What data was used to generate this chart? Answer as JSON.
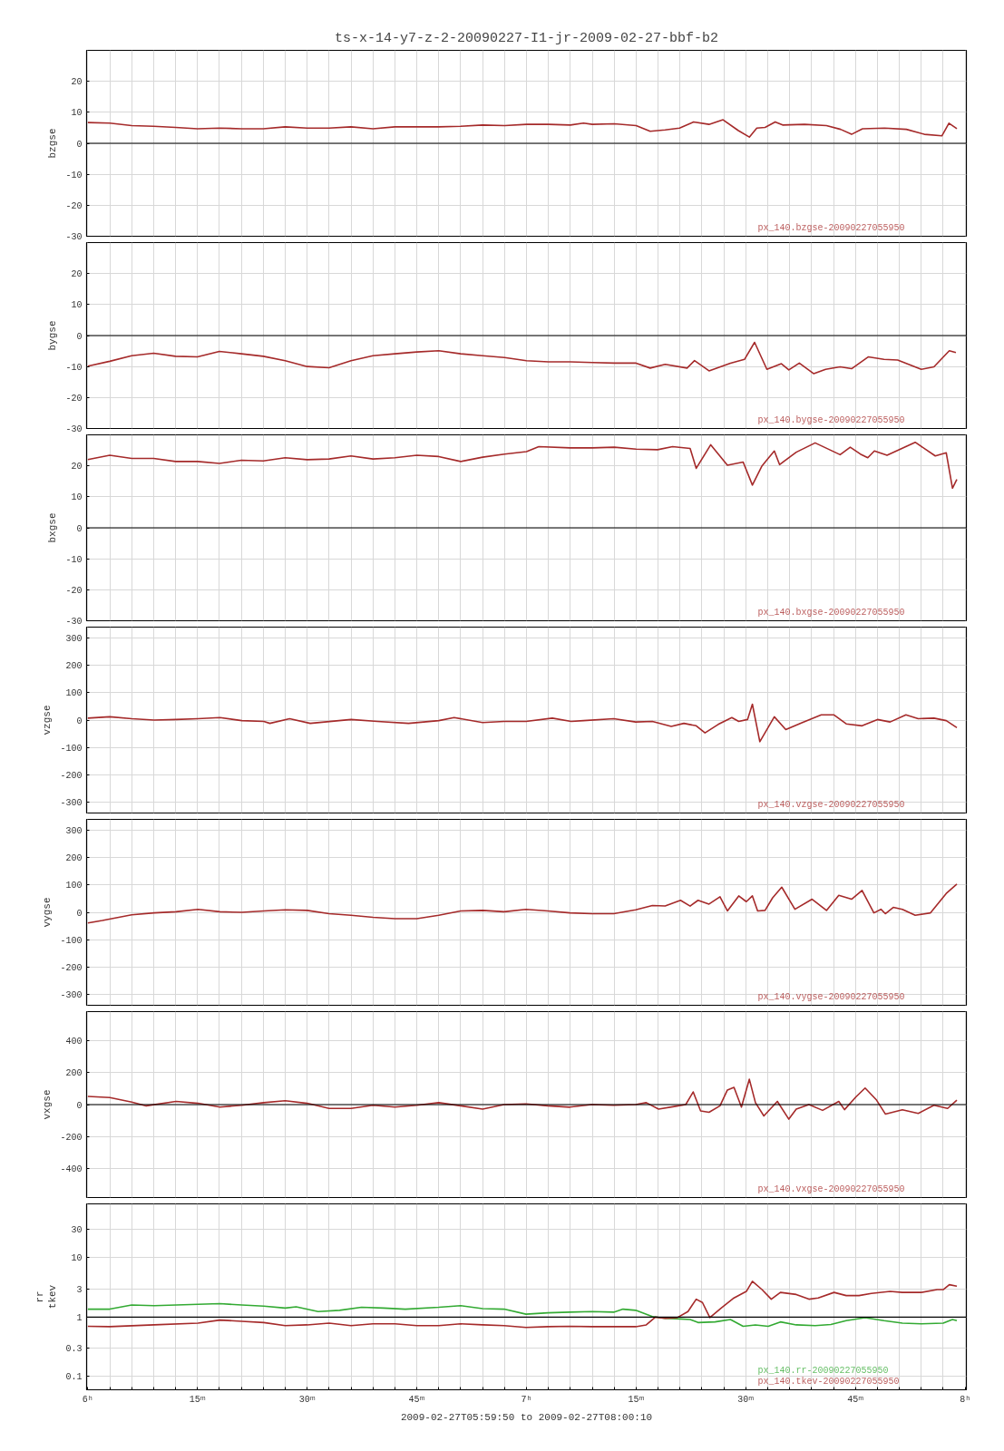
{
  "chart_data": [
    {
      "type": "line",
      "title": "ts-x-14-y7-z-2-20090227-I1-jr-2009-02-27-bbf-b2",
      "ylabel": "bzgse",
      "xlim": [
        "2009-02-27T05:59:50",
        "2009-02-27T08:00:10"
      ],
      "ylim": [
        -30,
        30
      ],
      "yticks": [
        -30,
        -20,
        -10,
        0,
        10,
        20
      ],
      "tick_labels": "y",
      "grid": true,
      "ref_lines": [
        {
          "axis": "y",
          "value": 0
        }
      ],
      "annotations": [
        "px_140.bzgse-20090227055950"
      ],
      "xticks": [
        "2009-02-27T06:00",
        "2009-02-27T06:03",
        "2009-02-27T06:06",
        "2009-02-27T06:09",
        "2009-02-27T06:12",
        "2009-02-27T06:15",
        "2009-02-27T06:18",
        "2009-02-27T06:21",
        "2009-02-27T06:24",
        "2009-02-27T06:27",
        "2009-02-27T06:30",
        "2009-02-27T06:33",
        "2009-02-27T06:36",
        "2009-02-27T06:39",
        "2009-02-27T06:42",
        "2009-02-27T06:45",
        "2009-02-27T06:48",
        "2009-02-27T06:51",
        "2009-02-27T06:54",
        "2009-02-27T06:57",
        "2009-02-27T07:00",
        "2009-02-27T07:03",
        "2009-02-27T07:06",
        "2009-02-27T07:09",
        "2009-02-27T07:12",
        "2009-02-27T07:15",
        "2009-02-27T07:18",
        "2009-02-27T07:21",
        "2009-02-27T07:24",
        "2009-02-27T07:27",
        "2009-02-27T07:30",
        "2009-02-27T07:33",
        "2009-02-27T07:36",
        "2009-02-27T07:39",
        "2009-02-27T07:42",
        "2009-02-27T07:45",
        "2009-02-27T07:48",
        "2009-02-27T07:51",
        "2009-02-27T07:54",
        "2009-02-27T07:57",
        "2009-02-27T08:00"
      ],
      "series": [
        {
          "color": "#a52a2a",
          "x": [
            "2009-02-27T06:00",
            "2009-02-27T06:03",
            "2009-02-27T06:06",
            "2009-02-27T06:09",
            "2009-02-27T06:12",
            "2009-02-27T06:15",
            "2009-02-27T06:18",
            "2009-02-27T06:21",
            "2009-02-27T06:24",
            "2009-02-27T06:27",
            "2009-02-27T06:30",
            "2009-02-27T06:33",
            "2009-02-27T06:36",
            "2009-02-27T06:39",
            "2009-02-27T06:42",
            "2009-02-27T06:45",
            "2009-02-27T06:48",
            "2009-02-27T06:51",
            "2009-02-27T06:54",
            "2009-02-27T06:57",
            "2009-02-27T07:00",
            "2009-02-27T07:03",
            "2009-02-27T07:06",
            "2009-02-27T07:07:48",
            "2009-02-27T07:09",
            "2009-02-27T07:12",
            "2009-02-27T07:15",
            "2009-02-27T07:16:55",
            "2009-02-27T07:18:58",
            "2009-02-27T07:20:56",
            "2009-02-27T07:22:52",
            "2009-02-27T07:24:58",
            "2009-02-27T07:26:53",
            "2009-02-27T07:28:59",
            "2009-02-27T07:30:29",
            "2009-02-27T07:31:30",
            "2009-02-27T07:32:38",
            "2009-02-27T07:34:01",
            "2009-02-27T07:35:02",
            "2009-02-27T07:38:02",
            "2009-02-27T07:41:02",
            "2009-02-27T07:42:58",
            "2009-02-27T07:44:28",
            "2009-02-27T07:45:58",
            "2009-02-27T07:48:58",
            "2009-02-27T07:51:58",
            "2009-02-27T07:54:25",
            "2009-02-27T07:56:49",
            "2009-02-27T07:57:47",
            "2009-02-27T07:58:52"
          ],
          "values": [
            6.7,
            6.5,
            5.7,
            5.5,
            5.1,
            4.7,
            4.9,
            4.7,
            4.7,
            5.3,
            4.9,
            4.9,
            5.3,
            4.7,
            5.3,
            5.3,
            5.3,
            5.5,
            5.9,
            5.7,
            6.1,
            6.1,
            5.9,
            6.5,
            6.1,
            6.3,
            5.7,
            3.9,
            4.3,
            4.9,
            6.9,
            6.1,
            7.6,
            4.1,
            2.0,
            4.9,
            5.1,
            6.9,
            5.9,
            6.1,
            5.7,
            4.5,
            2.9,
            4.7,
            4.9,
            4.5,
            2.9,
            2.4,
            6.5,
            4.7
          ]
        }
      ]
    },
    {
      "type": "line",
      "ylabel": "bygse",
      "xlim": [
        "2009-02-27T05:59:50",
        "2009-02-27T08:00:10"
      ],
      "ylim": [
        -30,
        30
      ],
      "yticks": [
        -30,
        -20,
        -10,
        0,
        10,
        20
      ],
      "tick_labels": "y",
      "grid": true,
      "ref_lines": [
        {
          "axis": "y",
          "value": 0
        }
      ],
      "annotations": [
        "px_140.bygse-20090227055950"
      ],
      "xticks": [
        "2009-02-27T06:00",
        "2009-02-27T06:03",
        "2009-02-27T06:06",
        "2009-02-27T06:09",
        "2009-02-27T06:12",
        "2009-02-27T06:15",
        "2009-02-27T06:18",
        "2009-02-27T06:21",
        "2009-02-27T06:24",
        "2009-02-27T06:27",
        "2009-02-27T06:30",
        "2009-02-27T06:33",
        "2009-02-27T06:36",
        "2009-02-27T06:39",
        "2009-02-27T06:42",
        "2009-02-27T06:45",
        "2009-02-27T06:48",
        "2009-02-27T06:51",
        "2009-02-27T06:54",
        "2009-02-27T06:57",
        "2009-02-27T07:00",
        "2009-02-27T07:03",
        "2009-02-27T07:06",
        "2009-02-27T07:09",
        "2009-02-27T07:12",
        "2009-02-27T07:15",
        "2009-02-27T07:18",
        "2009-02-27T07:21",
        "2009-02-27T07:24",
        "2009-02-27T07:27",
        "2009-02-27T07:30",
        "2009-02-27T07:33",
        "2009-02-27T07:36",
        "2009-02-27T07:39",
        "2009-02-27T07:42",
        "2009-02-27T07:45",
        "2009-02-27T07:48",
        "2009-02-27T07:51",
        "2009-02-27T07:54",
        "2009-02-27T07:57",
        "2009-02-27T08:00"
      ],
      "series": [
        {
          "color": "#a52a2a",
          "x": [
            "2009-02-27T06:00",
            "2009-02-27T06:03",
            "2009-02-27T06:06",
            "2009-02-27T06:09",
            "2009-02-27T06:12",
            "2009-02-27T06:15",
            "2009-02-27T06:18",
            "2009-02-27T06:21",
            "2009-02-27T06:24",
            "2009-02-27T06:27",
            "2009-02-27T06:30",
            "2009-02-27T06:33",
            "2009-02-27T06:36",
            "2009-02-27T06:39",
            "2009-02-27T06:42",
            "2009-02-27T06:45",
            "2009-02-27T06:48",
            "2009-02-27T06:51",
            "2009-02-27T06:54",
            "2009-02-27T06:57",
            "2009-02-27T07:00",
            "2009-02-27T07:03",
            "2009-02-27T07:06",
            "2009-02-27T07:09",
            "2009-02-27T07:12",
            "2009-02-27T07:15",
            "2009-02-27T07:16:55",
            "2009-02-27T07:18:58",
            "2009-02-27T07:21:58",
            "2009-02-27T07:22:59",
            "2009-02-27T07:24:58",
            "2009-02-27T07:27:54",
            "2009-02-27T07:29:49",
            "2009-02-27T07:31:12",
            "2009-02-27T07:32:53",
            "2009-02-27T07:34:52",
            "2009-02-27T07:35:53",
            "2009-02-27T07:37:19",
            "2009-02-27T07:39:18",
            "2009-02-27T07:40:55",
            "2009-02-27T07:42:54",
            "2009-02-27T07:44:28",
            "2009-02-27T07:46:44",
            "2009-02-27T07:48:54",
            "2009-02-27T07:50:46",
            "2009-02-27T07:54",
            "2009-02-27T07:55:44",
            "2009-02-27T07:57:50",
            "2009-02-27T07:58:44"
          ],
          "values": [
            -9.9,
            -8.3,
            -6.5,
            -5.7,
            -6.7,
            -6.9,
            -5.1,
            -5.9,
            -6.7,
            -8.1,
            -10,
            -10.4,
            -8.1,
            -6.5,
            -5.9,
            -5.3,
            -4.9,
            -5.9,
            -6.5,
            -7.1,
            -8.1,
            -8.5,
            -8.5,
            -8.7,
            -8.9,
            -8.9,
            -10.5,
            -9.3,
            -10.5,
            -8.1,
            -11.4,
            -8.9,
            -7.7,
            -2.2,
            -10.9,
            -9.1,
            -11.1,
            -8.9,
            -12.3,
            -10.9,
            -10.1,
            -10.7,
            -6.9,
            -7.7,
            -7.9,
            -10.9,
            -10.1,
            -4.9,
            -5.5
          ]
        }
      ]
    },
    {
      "type": "line",
      "ylabel": "bxgse",
      "xlim": [
        "2009-02-27T05:59:50",
        "2009-02-27T08:00:10"
      ],
      "ylim": [
        -30,
        30
      ],
      "yticks": [
        -30,
        -20,
        -10,
        0,
        10,
        20
      ],
      "tick_labels": "y",
      "grid": true,
      "ref_lines": [
        {
          "axis": "y",
          "value": 0
        }
      ],
      "annotations": [
        "px_140.bxgse-20090227055950"
      ],
      "xticks": [
        "2009-02-27T06:00",
        "2009-02-27T06:03",
        "2009-02-27T06:06",
        "2009-02-27T06:09",
        "2009-02-27T06:12",
        "2009-02-27T06:15",
        "2009-02-27T06:18",
        "2009-02-27T06:21",
        "2009-02-27T06:24",
        "2009-02-27T06:27",
        "2009-02-27T06:30",
        "2009-02-27T06:33",
        "2009-02-27T06:36",
        "2009-02-27T06:39",
        "2009-02-27T06:42",
        "2009-02-27T06:45",
        "2009-02-27T06:48",
        "2009-02-27T06:51",
        "2009-02-27T06:54",
        "2009-02-27T06:57",
        "2009-02-27T07:00",
        "2009-02-27T07:03",
        "2009-02-27T07:06",
        "2009-02-27T07:09",
        "2009-02-27T07:12",
        "2009-02-27T07:15",
        "2009-02-27T07:18",
        "2009-02-27T07:21",
        "2009-02-27T07:24",
        "2009-02-27T07:27",
        "2009-02-27T07:30",
        "2009-02-27T07:33",
        "2009-02-27T07:36",
        "2009-02-27T07:39",
        "2009-02-27T07:42",
        "2009-02-27T07:45",
        "2009-02-27T07:48",
        "2009-02-27T07:51",
        "2009-02-27T07:54",
        "2009-02-27T07:57",
        "2009-02-27T08:00"
      ],
      "series": [
        {
          "color": "#a52a2a",
          "x": [
            "2009-02-27T06:00",
            "2009-02-27T06:03",
            "2009-02-27T06:06",
            "2009-02-27T06:09",
            "2009-02-27T06:12",
            "2009-02-27T06:15",
            "2009-02-27T06:18",
            "2009-02-27T06:21",
            "2009-02-27T06:24",
            "2009-02-27T06:27",
            "2009-02-27T06:30",
            "2009-02-27T06:33",
            "2009-02-27T06:36",
            "2009-02-27T06:39",
            "2009-02-27T06:42",
            "2009-02-27T06:45",
            "2009-02-27T06:48",
            "2009-02-27T06:51",
            "2009-02-27T06:54",
            "2009-02-27T06:57",
            "2009-02-27T07:00",
            "2009-02-27T07:01:41",
            "2009-02-27T07:06",
            "2009-02-27T07:09",
            "2009-02-27T07:12",
            "2009-02-27T07:15",
            "2009-02-27T07:17:56",
            "2009-02-27T07:19:59",
            "2009-02-27T07:22:23",
            "2009-02-27T07:23:13",
            "2009-02-27T07:25:12",
            "2009-02-27T07:27:29",
            "2009-02-27T07:29:38",
            "2009-02-27T07:30:54",
            "2009-02-27T07:32:13",
            "2009-02-27T07:33:54",
            "2009-02-27T07:34:37",
            "2009-02-27T07:36:54",
            "2009-02-27T07:39:29",
            "2009-02-27T07:42:54",
            "2009-02-27T07:44:17",
            "2009-02-27T07:45:40",
            "2009-02-27T07:46:41",
            "2009-02-27T07:47:35",
            "2009-02-27T07:49:19",
            "2009-02-27T07:53:10",
            "2009-02-27T07:55:55",
            "2009-02-27T07:57:25",
            "2009-02-27T07:58:16",
            "2009-02-27T07:58:52"
          ],
          "values": [
            22,
            23.4,
            22.4,
            22.4,
            21.4,
            21.4,
            20.8,
            21.8,
            21.6,
            22.6,
            22,
            22.2,
            23.2,
            22.2,
            22.6,
            23.4,
            23,
            21.4,
            22.8,
            23.8,
            24.6,
            26.2,
            25.8,
            25.8,
            26,
            25.4,
            25.2,
            26.2,
            25.6,
            19.2,
            26.8,
            20.2,
            21.2,
            13.8,
            20,
            24.8,
            20.4,
            24.4,
            27.4,
            23.6,
            26,
            23.8,
            22.6,
            24.8,
            23.4,
            27.6,
            23.2,
            24.2,
            12.8,
            15.6
          ]
        }
      ]
    },
    {
      "type": "line",
      "ylabel": "vzgse",
      "xlim": [
        "2009-02-27T05:59:50",
        "2009-02-27T08:00:10"
      ],
      "ylim": [
        -340,
        340
      ],
      "yticks": [
        -300,
        -200,
        -100,
        0,
        100,
        200,
        300
      ],
      "tick_labels": "y",
      "grid": true,
      "annotations": [
        "px_140.vzgse-20090227055950"
      ],
      "xticks": [
        "2009-02-27T06:00",
        "2009-02-27T06:03",
        "2009-02-27T06:06",
        "2009-02-27T06:09",
        "2009-02-27T06:12",
        "2009-02-27T06:15",
        "2009-02-27T06:18",
        "2009-02-27T06:21",
        "2009-02-27T06:24",
        "2009-02-27T06:27",
        "2009-02-27T06:30",
        "2009-02-27T06:33",
        "2009-02-27T06:36",
        "2009-02-27T06:39",
        "2009-02-27T06:42",
        "2009-02-27T06:45",
        "2009-02-27T06:48",
        "2009-02-27T06:51",
        "2009-02-27T06:54",
        "2009-02-27T06:57",
        "2009-02-27T07:00",
        "2009-02-27T07:03",
        "2009-02-27T07:06",
        "2009-02-27T07:09",
        "2009-02-27T07:12",
        "2009-02-27T07:15",
        "2009-02-27T07:18",
        "2009-02-27T07:21",
        "2009-02-27T07:24",
        "2009-02-27T07:27",
        "2009-02-27T07:30",
        "2009-02-27T07:33",
        "2009-02-27T07:36",
        "2009-02-27T07:39",
        "2009-02-27T07:42",
        "2009-02-27T07:45",
        "2009-02-27T07:48",
        "2009-02-27T07:51",
        "2009-02-27T07:54",
        "2009-02-27T07:57",
        "2009-02-27T08:00"
      ],
      "series": [
        {
          "color": "#a52a2a",
          "x": [
            "2009-02-27T06:00",
            "2009-02-27T06:03",
            "2009-02-27T06:06",
            "2009-02-27T06:09:04",
            "2009-02-27T06:12:04",
            "2009-02-27T06:15:04",
            "2009-02-27T06:18:04",
            "2009-02-27T06:21:04",
            "2009-02-27T06:24:04",
            "2009-02-27T06:24:54",
            "2009-02-27T06:27:36",
            "2009-02-27T06:30:25",
            "2009-02-27T06:36",
            "2009-02-27T06:39:36",
            "2009-02-27T06:43:52",
            "2009-02-27T06:48",
            "2009-02-27T06:50:06",
            "2009-02-27T06:54",
            "2009-02-27T06:56:56",
            "2009-02-27T06:59:56",
            "2009-02-27T07:03:32",
            "2009-02-27T07:06:07",
            "2009-02-27T07:07:48",
            "2009-02-27T07:11:56",
            "2009-02-27T07:14:56",
            "2009-02-27T07:17:13",
            "2009-02-27T07:19:48",
            "2009-02-27T07:21:32",
            "2009-02-27T07:23:13",
            "2009-02-27T07:24:25",
            "2009-02-27T07:26:13",
            "2009-02-27T07:28:05",
            "2009-02-27T07:29:02",
            "2009-02-27T07:30:14",
            "2009-02-27T07:30:54",
            "2009-02-27T07:31:55",
            "2009-02-27T07:33:54",
            "2009-02-27T07:35:28",
            "2009-02-27T07:37:44",
            "2009-02-27T07:40:19",
            "2009-02-27T07:42:04",
            "2009-02-27T07:43:44",
            "2009-02-27T07:45:54",
            "2009-02-27T07:48",
            "2009-02-27T07:49:44",
            "2009-02-27T07:51:54",
            "2009-02-27T07:53:35",
            "2009-02-27T07:55:44",
            "2009-02-27T07:57:25",
            "2009-02-27T07:58:52"
          ],
          "values": [
            7,
            12,
            5,
            0,
            2,
            5,
            9,
            -2,
            -5,
            -12,
            5,
            -12,
            2,
            -5,
            -12,
            -2,
            9,
            -9,
            -5,
            -5,
            7,
            -5,
            -2,
            5,
            -7,
            -5,
            -23,
            -12,
            -21,
            -47,
            -16,
            9,
            -5,
            2,
            58,
            -79,
            12,
            -35,
            -9,
            19,
            19,
            -14,
            -21,
            2,
            -7,
            19,
            5,
            7,
            -2,
            -28
          ]
        }
      ]
    },
    {
      "type": "line",
      "ylabel": "vygse",
      "xlim": [
        "2009-02-27T05:59:50",
        "2009-02-27T08:00:10"
      ],
      "ylim": [
        -340,
        340
      ],
      "yticks": [
        -300,
        -200,
        -100,
        0,
        100,
        200,
        300
      ],
      "tick_labels": "y",
      "grid": true,
      "annotations": [
        "px_140.vygse-20090227055950"
      ],
      "xticks": [
        "2009-02-27T06:00",
        "2009-02-27T06:03",
        "2009-02-27T06:06",
        "2009-02-27T06:09",
        "2009-02-27T06:12",
        "2009-02-27T06:15",
        "2009-02-27T06:18",
        "2009-02-27T06:21",
        "2009-02-27T06:24",
        "2009-02-27T06:27",
        "2009-02-27T06:30",
        "2009-02-27T06:33",
        "2009-02-27T06:36",
        "2009-02-27T06:39",
        "2009-02-27T06:42",
        "2009-02-27T06:45",
        "2009-02-27T06:48",
        "2009-02-27T06:51",
        "2009-02-27T06:54",
        "2009-02-27T06:57",
        "2009-02-27T07:00",
        "2009-02-27T07:03",
        "2009-02-27T07:06",
        "2009-02-27T07:09",
        "2009-02-27T07:12",
        "2009-02-27T07:15",
        "2009-02-27T07:18",
        "2009-02-27T07:21",
        "2009-02-27T07:24",
        "2009-02-27T07:27",
        "2009-02-27T07:30",
        "2009-02-27T07:33",
        "2009-02-27T07:36",
        "2009-02-27T07:39",
        "2009-02-27T07:42",
        "2009-02-27T07:45",
        "2009-02-27T07:48",
        "2009-02-27T07:51",
        "2009-02-27T07:54",
        "2009-02-27T07:57",
        "2009-02-27T08:00"
      ],
      "series": [
        {
          "color": "#a52a2a",
          "x": [
            "2009-02-27T06:00",
            "2009-02-27T06:01:59",
            "2009-02-27T06:06",
            "2009-02-27T06:09:04",
            "2009-02-27T06:12:04",
            "2009-02-27T06:15:04",
            "2009-02-27T06:18:04",
            "2009-02-27T06:21:04",
            "2009-02-27T06:24:04",
            "2009-02-27T06:27",
            "2009-02-27T06:30",
            "2009-02-27T06:33",
            "2009-02-27T06:36",
            "2009-02-27T06:39",
            "2009-02-27T06:42",
            "2009-02-27T06:45",
            "2009-02-27T06:48",
            "2009-02-27T06:51",
            "2009-02-27T06:54",
            "2009-02-27T06:56:56",
            "2009-02-27T06:59:56",
            "2009-02-27T07:02:56",
            "2009-02-27T07:05:56",
            "2009-02-27T07:08:56",
            "2009-02-27T07:11:56",
            "2009-02-27T07:14:56",
            "2009-02-27T07:17:13",
            "2009-02-27T07:18:58",
            "2009-02-27T07:21:04",
            "2009-02-27T07:22:23",
            "2009-02-27T07:23:28",
            "2009-02-27T07:24:58",
            "2009-02-27T07:26:28",
            "2009-02-27T07:27:29",
            "2009-02-27T07:29:02",
            "2009-02-27T07:30:04",
            "2009-02-27T07:30:54",
            "2009-02-27T07:31:37",
            "2009-02-27T07:32:38",
            "2009-02-27T07:33:40",
            "2009-02-27T07:34:55",
            "2009-02-27T07:36:43",
            "2009-02-27T07:39:04",
            "2009-02-27T07:41:02",
            "2009-02-27T07:42:43",
            "2009-02-27T07:44:28",
            "2009-02-27T07:45:54",
            "2009-02-27T07:47:31",
            "2009-02-27T07:48:29",
            "2009-02-27T07:49:05",
            "2009-02-27T07:50:10",
            "2009-02-27T07:51:25",
            "2009-02-27T07:53:10",
            "2009-02-27T07:55:16",
            "2009-02-27T07:57:25",
            "2009-02-27T07:58:52"
          ],
          "values": [
            -39,
            -30,
            -9,
            -2,
            2,
            11,
            2,
            0,
            5,
            9,
            7,
            -5,
            -11,
            -18,
            -23,
            -23,
            -11,
            5,
            7,
            2,
            11,
            5,
            -2,
            -5,
            -5,
            9,
            25,
            23,
            44,
            23,
            44,
            30,
            57,
            5,
            60,
            39,
            60,
            5,
            7,
            53,
            92,
            11,
            48,
            7,
            62,
            48,
            80,
            -2,
            11,
            -5,
            18,
            11,
            -11,
            -2,
            69,
            103
          ]
        }
      ]
    },
    {
      "type": "line",
      "ylabel": "vxgse",
      "xlim": [
        "2009-02-27T05:59:50",
        "2009-02-27T08:00:10"
      ],
      "ylim": [
        -580,
        580
      ],
      "yticks": [
        -400,
        -200,
        0,
        200,
        400
      ],
      "tick_labels": "y",
      "grid": true,
      "ref_lines": [
        {
          "axis": "y",
          "value": 0
        }
      ],
      "annotations": [
        "px_140.vxgse-20090227055950"
      ],
      "xticks": [
        "2009-02-27T06:00",
        "2009-02-27T06:03",
        "2009-02-27T06:06",
        "2009-02-27T06:09",
        "2009-02-27T06:12",
        "2009-02-27T06:15",
        "2009-02-27T06:18",
        "2009-02-27T06:21",
        "2009-02-27T06:24",
        "2009-02-27T06:27",
        "2009-02-27T06:30",
        "2009-02-27T06:33",
        "2009-02-27T06:36",
        "2009-02-27T06:39",
        "2009-02-27T06:42",
        "2009-02-27T06:45",
        "2009-02-27T06:48",
        "2009-02-27T06:51",
        "2009-02-27T06:54",
        "2009-02-27T06:57",
        "2009-02-27T07:00",
        "2009-02-27T07:03",
        "2009-02-27T07:06",
        "2009-02-27T07:09",
        "2009-02-27T07:12",
        "2009-02-27T07:15",
        "2009-02-27T07:18",
        "2009-02-27T07:21",
        "2009-02-27T07:24",
        "2009-02-27T07:27",
        "2009-02-27T07:30",
        "2009-02-27T07:33",
        "2009-02-27T07:36",
        "2009-02-27T07:39",
        "2009-02-27T07:42",
        "2009-02-27T07:45",
        "2009-02-27T07:48",
        "2009-02-27T07:51",
        "2009-02-27T07:54",
        "2009-02-27T07:57",
        "2009-02-27T08:00"
      ],
      "series": [
        {
          "color": "#a52a2a",
          "x": [
            "2009-02-27T06:00",
            "2009-02-27T06:03",
            "2009-02-27T06:06",
            "2009-02-27T06:07:59",
            "2009-02-27T06:12:04",
            "2009-02-27T06:15:04",
            "2009-02-27T06:18:04",
            "2009-02-27T06:21:04",
            "2009-02-27T06:24:04",
            "2009-02-27T06:27",
            "2009-02-27T06:30",
            "2009-02-27T06:33",
            "2009-02-27T06:36",
            "2009-02-27T06:39",
            "2009-02-27T06:42",
            "2009-02-27T06:45",
            "2009-02-27T06:48",
            "2009-02-27T06:51",
            "2009-02-27T06:54",
            "2009-02-27T06:56:56",
            "2009-02-27T06:59:56",
            "2009-02-27T07:02:56",
            "2009-02-27T07:05:56",
            "2009-02-27T07:08:56",
            "2009-02-27T07:11:56",
            "2009-02-27T07:14:56",
            "2009-02-27T07:16:23",
            "2009-02-27T07:18:04",
            "2009-02-27T07:20:13",
            "2009-02-27T07:21:47",
            "2009-02-27T07:22:48",
            "2009-02-27T07:23:49",
            "2009-02-27T07:24:58",
            "2009-02-27T07:26:28",
            "2009-02-27T07:27:29",
            "2009-02-27T07:28:23",
            "2009-02-27T07:29:24",
            "2009-02-27T07:30:29",
            "2009-02-27T07:31:19",
            "2009-02-27T07:32:28",
            "2009-02-27T07:34:19",
            "2009-02-27T07:35:53",
            "2009-02-27T07:36:54",
            "2009-02-27T07:38:38",
            "2009-02-27T07:40:30",
            "2009-02-27T07:42:43",
            "2009-02-27T07:43:30",
            "2009-02-27T07:45:04",
            "2009-02-27T07:46:19",
            "2009-02-27T07:47:53",
            "2009-02-27T07:49:05",
            "2009-02-27T07:51:25",
            "2009-02-27T07:53:35",
            "2009-02-27T07:55:44",
            "2009-02-27T07:57:36",
            "2009-02-27T07:58:52"
          ],
          "values": [
            51,
            44,
            16,
            -8,
            20,
            8,
            -16,
            -4,
            12,
            24,
            8,
            -24,
            -24,
            -4,
            -16,
            -4,
            12,
            -8,
            -28,
            0,
            4,
            -8,
            -16,
            0,
            -4,
            0,
            12,
            -28,
            -12,
            0,
            79,
            -40,
            -48,
            -8,
            91,
            107,
            -16,
            158,
            12,
            -71,
            20,
            -91,
            -28,
            0,
            -36,
            20,
            -32,
            48,
            103,
            28,
            -59,
            -32,
            -55,
            -4,
            -24,
            28
          ]
        }
      ]
    },
    {
      "type": "line",
      "ylabel": "rr\ntkev",
      "xlabel": "2009-02-27T05:59:50 to 2009-02-27T08:00:10",
      "log": true,
      "xlim": [
        "2009-02-27T05:59:50",
        "2009-02-27T08:00:10"
      ],
      "ylim": [
        0.06,
        80
      ],
      "yticks": [
        0.1,
        0.3,
        1,
        3,
        10,
        30
      ],
      "grid": true,
      "ref_lines": [
        {
          "axis": "y",
          "value": 1
        }
      ],
      "annotations": [
        "px_140.rr-20090227055950",
        "px_140.tkev-20090227055950"
      ],
      "xticks": [
        {
          "value": "2009-02-27T06:00",
          "label": "6ʰ"
        },
        {
          "value": "2009-02-27T06:03",
          "label": null
        },
        {
          "value": "2009-02-27T06:06",
          "label": null
        },
        {
          "value": "2009-02-27T06:09",
          "label": null
        },
        {
          "value": "2009-02-27T06:12",
          "label": null
        },
        {
          "value": "2009-02-27T06:15",
          "label": "15ᵐ"
        },
        {
          "value": "2009-02-27T06:18",
          "label": null
        },
        {
          "value": "2009-02-27T06:21",
          "label": null
        },
        {
          "value": "2009-02-27T06:24",
          "label": null
        },
        {
          "value": "2009-02-27T06:27",
          "label": null
        },
        {
          "value": "2009-02-27T06:30",
          "label": "30ᵐ"
        },
        {
          "value": "2009-02-27T06:33",
          "label": null
        },
        {
          "value": "2009-02-27T06:36",
          "label": null
        },
        {
          "value": "2009-02-27T06:39",
          "label": null
        },
        {
          "value": "2009-02-27T06:42",
          "label": null
        },
        {
          "value": "2009-02-27T06:45",
          "label": "45ᵐ"
        },
        {
          "value": "2009-02-27T06:48",
          "label": null
        },
        {
          "value": "2009-02-27T06:51",
          "label": null
        },
        {
          "value": "2009-02-27T06:54",
          "label": null
        },
        {
          "value": "2009-02-27T06:57",
          "label": null
        },
        {
          "value": "2009-02-27T07:00",
          "label": "7ʰ"
        },
        {
          "value": "2009-02-27T07:03",
          "label": null
        },
        {
          "value": "2009-02-27T07:06",
          "label": null
        },
        {
          "value": "2009-02-27T07:09",
          "label": null
        },
        {
          "value": "2009-02-27T07:12",
          "label": null
        },
        {
          "value": "2009-02-27T07:15",
          "label": "15ᵐ"
        },
        {
          "value": "2009-02-27T07:18",
          "label": null
        },
        {
          "value": "2009-02-27T07:21",
          "label": null
        },
        {
          "value": "2009-02-27T07:24",
          "label": null
        },
        {
          "value": "2009-02-27T07:27",
          "label": null
        },
        {
          "value": "2009-02-27T07:30",
          "label": "30ᵐ"
        },
        {
          "value": "2009-02-27T07:33",
          "label": null
        },
        {
          "value": "2009-02-27T07:36",
          "label": null
        },
        {
          "value": "2009-02-27T07:39",
          "label": null
        },
        {
          "value": "2009-02-27T07:42",
          "label": null
        },
        {
          "value": "2009-02-27T07:45",
          "label": "45ᵐ"
        },
        {
          "value": "2009-02-27T07:48",
          "label": null
        },
        {
          "value": "2009-02-27T07:51",
          "label": null
        },
        {
          "value": "2009-02-27T07:54",
          "label": null
        },
        {
          "value": "2009-02-27T07:57",
          "label": null
        },
        {
          "value": "2009-02-27T08:00",
          "label": "8ʰ"
        }
      ],
      "series": [
        {
          "color": "#33aa33",
          "x": [
            "2009-02-27T06:00",
            "2009-02-27T06:03",
            "2009-02-27T06:06",
            "2009-02-27T06:09:04",
            "2009-02-27T06:12:04",
            "2009-02-27T06:15:04",
            "2009-02-27T06:18:04",
            "2009-02-27T06:21:04",
            "2009-02-27T06:24:04",
            "2009-02-27T06:27",
            "2009-02-27T06:28:30",
            "2009-02-27T06:31:30",
            "2009-02-27T06:34:26",
            "2009-02-27T06:37:26",
            "2009-02-27T06:40:26",
            "2009-02-27T06:43:26",
            "2009-02-27T06:48",
            "2009-02-27T06:51",
            "2009-02-27T06:54",
            "2009-02-27T06:56:56",
            "2009-02-27T06:59:56",
            "2009-02-27T07:02:56",
            "2009-02-27T07:05:56",
            "2009-02-27T07:08:56",
            "2009-02-27T07:11:56",
            "2009-02-27T07:13:12",
            "2009-02-27T07:14:56",
            "2009-02-27T07:17:13",
            "2009-02-27T07:18:58",
            "2009-02-27T07:21:04",
            "2009-02-27T07:22:23",
            "2009-02-27T07:23:28",
            "2009-02-27T07:25:48",
            "2009-02-27T07:27:54",
            "2009-02-27T07:29:38",
            "2009-02-27T07:31:19",
            "2009-02-27T07:33:04",
            "2009-02-27T07:34:44",
            "2009-02-27T07:36:54",
            "2009-02-27T07:39:29",
            "2009-02-27T07:41:38",
            "2009-02-27T07:43:44",
            "2009-02-27T07:46:19",
            "2009-02-27T07:48:54",
            "2009-02-27T07:51:25",
            "2009-02-27T07:54",
            "2009-02-27T07:57",
            "2009-02-27T07:58:16",
            "2009-02-27T07:58:52"
          ],
          "values": [
            1.36,
            1.36,
            1.6,
            1.56,
            1.6,
            1.64,
            1.68,
            1.6,
            1.53,
            1.42,
            1.49,
            1.24,
            1.3,
            1.46,
            1.42,
            1.36,
            1.46,
            1.56,
            1.39,
            1.36,
            1.12,
            1.18,
            1.21,
            1.24,
            1.21,
            1.36,
            1.3,
            1.02,
            0.95,
            0.93,
            0.91,
            0.81,
            0.83,
            0.91,
            0.7,
            0.74,
            0.7,
            0.83,
            0.74,
            0.72,
            0.75,
            0.87,
            0.98,
            0.87,
            0.79,
            0.77,
            0.79,
            0.91,
            0.87
          ]
        },
        {
          "color": "#a52a2a",
          "x": [
            "2009-02-27T06:00",
            "2009-02-27T06:03",
            "2009-02-27T06:09:04",
            "2009-02-27T06:15:04",
            "2009-02-27T06:18:04",
            "2009-02-27T06:21:04",
            "2009-02-27T06:24:04",
            "2009-02-27T06:27",
            "2009-02-27T06:30",
            "2009-02-27T06:33",
            "2009-02-27T06:36",
            "2009-02-27T06:39",
            "2009-02-27T06:42",
            "2009-02-27T06:45",
            "2009-02-27T06:48",
            "2009-02-27T06:51",
            "2009-02-27T06:54",
            "2009-02-27T06:56:56",
            "2009-02-27T06:59:56",
            "2009-02-27T07:02:56",
            "2009-02-27T07:05:56",
            "2009-02-27T07:08:56",
            "2009-02-27T07:11:56",
            "2009-02-27T07:14:56",
            "2009-02-27T07:16:23",
            "2009-02-27T07:17:38",
            "2009-02-27T07:18:58",
            "2009-02-27T07:20:38",
            "2009-02-27T07:22:05",
            "2009-02-27T07:23:13",
            "2009-02-27T07:24:04",
            "2009-02-27T07:25:05",
            "2009-02-27T07:26:38",
            "2009-02-27T07:28:23",
            "2009-02-27T07:30:04",
            "2009-02-27T07:30:54",
            "2009-02-27T07:32:13",
            "2009-02-27T07:33:29",
            "2009-02-27T07:34:44",
            "2009-02-27T07:36:54",
            "2009-02-27T07:38:38",
            "2009-02-27T07:39:54",
            "2009-02-27T07:42:04",
            "2009-02-27T07:43:44",
            "2009-02-27T07:45:29",
            "2009-02-27T07:47:10",
            "2009-02-27T07:49:44",
            "2009-02-27T07:51:25",
            "2009-02-27T07:54",
            "2009-02-27T07:56:10",
            "2009-02-27T07:57",
            "2009-02-27T07:57:50",
            "2009-02-27T07:58:52"
          ],
          "values": [
            0.7,
            0.69,
            0.74,
            0.79,
            0.89,
            0.85,
            0.81,
            0.72,
            0.74,
            0.79,
            0.72,
            0.77,
            0.77,
            0.72,
            0.72,
            0.77,
            0.74,
            0.72,
            0.67,
            0.69,
            0.7,
            0.69,
            0.69,
            0.69,
            0.74,
            1.0,
            0.95,
            0.98,
            1.24,
            2.0,
            1.76,
            0.98,
            1.42,
            2.1,
            2.7,
            4.0,
            2.9,
            2.0,
            2.6,
            2.4,
            2.0,
            2.1,
            2.6,
            2.3,
            2.3,
            2.5,
            2.7,
            2.6,
            2.6,
            2.9,
            2.9,
            3.5,
            3.3
          ]
        }
      ]
    }
  ]
}
